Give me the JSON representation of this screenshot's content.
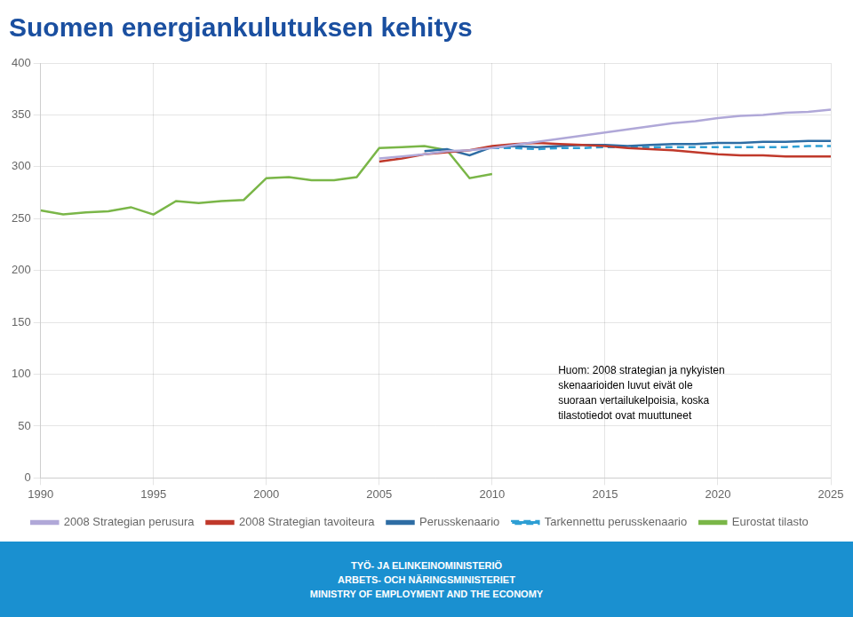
{
  "chart_data": {
    "type": "line",
    "title": "Suomen energiankulutuksen kehitys",
    "series": [
      {
        "name": "2008 Strategian perusura",
        "color": "#b0a8d8",
        "x": [
          2005,
          2006,
          2007,
          2008,
          2009,
          2010,
          2011,
          2012,
          2013,
          2014,
          2015,
          2016,
          2017,
          2018,
          2019,
          2020,
          2021,
          2022,
          2023,
          2024,
          2025
        ],
        "values": [
          308,
          310,
          312,
          315,
          316,
          318,
          321,
          324,
          327,
          330,
          333,
          336,
          339,
          342,
          344,
          347,
          349,
          350,
          352,
          353,
          355
        ]
      },
      {
        "name": "2008 Strategian tavoiteura",
        "color": "#c0392b",
        "x": [
          2005,
          2006,
          2007,
          2008,
          2009,
          2010,
          2011,
          2012,
          2013,
          2014,
          2015,
          2016,
          2017,
          2018,
          2019,
          2020,
          2021,
          2022,
          2023,
          2024,
          2025
        ],
        "values": [
          305,
          308,
          312,
          314,
          316,
          320,
          322,
          323,
          322,
          321,
          320,
          318,
          317,
          316,
          314,
          312,
          311,
          311,
          310,
          310,
          310
        ]
      },
      {
        "name": "Perusskenaario",
        "color": "#2e6da4",
        "x": [
          2007,
          2008,
          2009,
          2010,
          2011,
          2012,
          2013,
          2014,
          2015,
          2016,
          2017,
          2018,
          2019,
          2020,
          2021,
          2022,
          2023,
          2024,
          2025
        ],
        "values": [
          315,
          317,
          311,
          319,
          320,
          319,
          320,
          321,
          321,
          320,
          321,
          322,
          322,
          323,
          323,
          324,
          324,
          325,
          325
        ]
      },
      {
        "name": "Tarkennettu perusskenaario",
        "color": "#2e9fd4",
        "line_style": "dashed",
        "x": [
          2010,
          2011,
          2012,
          2013,
          2014,
          2015,
          2016,
          2017,
          2018,
          2019,
          2020,
          2021,
          2022,
          2023,
          2024,
          2025
        ],
        "values": [
          318,
          318,
          317,
          318,
          318,
          319,
          319,
          319,
          319,
          319,
          319,
          319,
          319,
          319,
          320,
          320
        ]
      },
      {
        "name": "Eurostat tilasto",
        "color": "#7ab648",
        "x": [
          1990,
          1991,
          1992,
          1993,
          1994,
          1995,
          1996,
          1997,
          1998,
          1999,
          2000,
          2001,
          2002,
          2003,
          2004,
          2005,
          2006,
          2007,
          2008,
          2009,
          2010
        ],
        "values": [
          258,
          254,
          256,
          257,
          261,
          254,
          267,
          265,
          267,
          268,
          289,
          290,
          287,
          287,
          290,
          318,
          319,
          320,
          316,
          289,
          293
        ]
      }
    ],
    "xlim": [
      1990,
      2025
    ],
    "xticks": [
      1990,
      1995,
      2000,
      2005,
      2010,
      2015,
      2020,
      2025
    ],
    "ylim": [
      0,
      400
    ],
    "yticks": [
      0,
      50,
      100,
      150,
      200,
      250,
      300,
      350,
      400
    ],
    "grid": true,
    "legend": "bottom",
    "annotations": [
      "Huom: 2008 strategian ja nykyisten",
      "skenaarioiden luvut eivät ole",
      "suoraan vertailukelpoisia, koska",
      "tilastotiedot ovat muuttuneet"
    ],
    "footer": [
      "TYÖ- JA ELINKEINOMINISTERIÖ",
      "ARBETS- OCH NÄRINGSMINISTERIET",
      "MINISTRY OF EMPLOYMENT AND THE ECONOMY"
    ]
  }
}
